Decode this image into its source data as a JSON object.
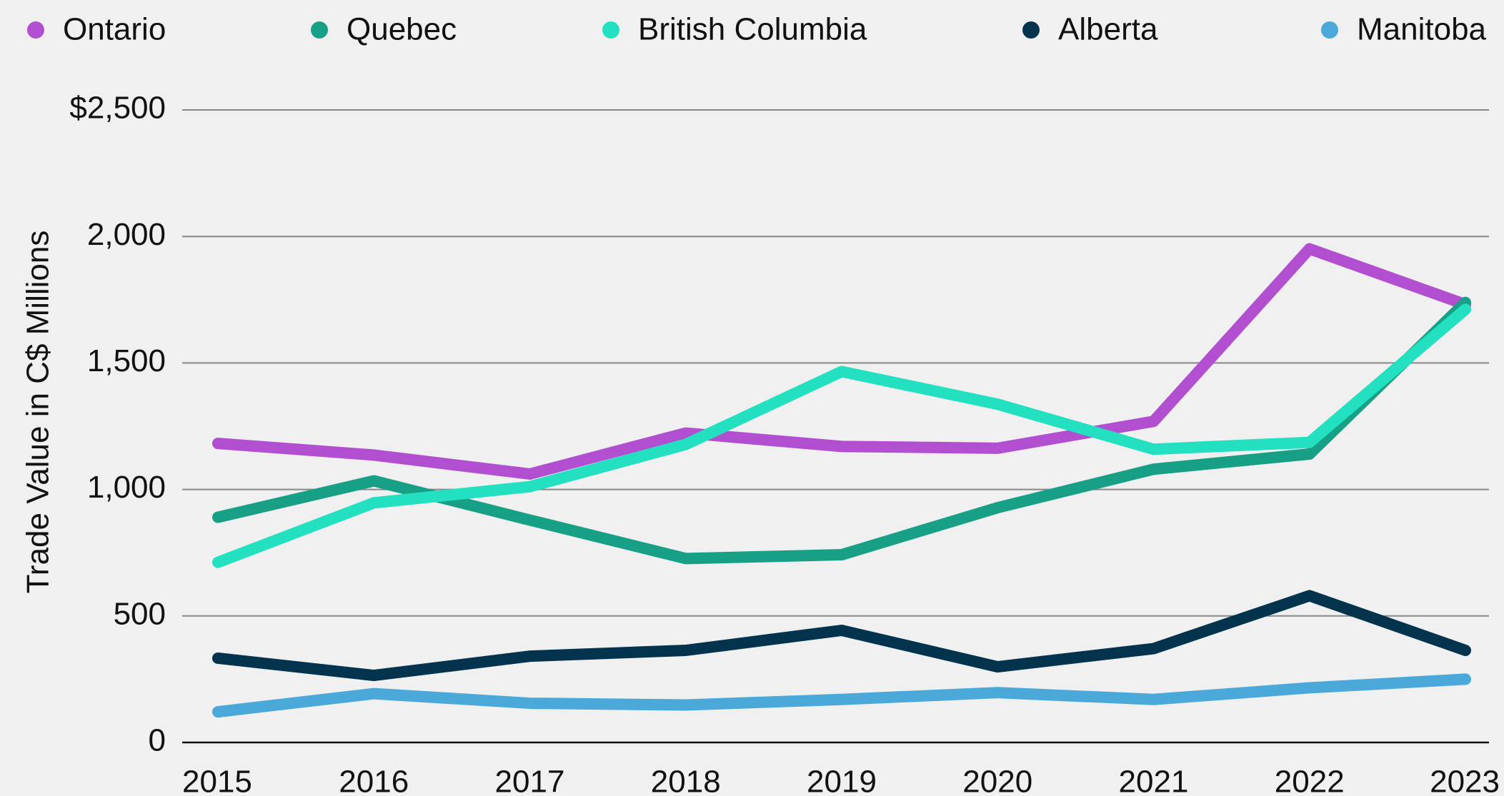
{
  "chart_data": {
    "type": "line",
    "y_label": "Trade Value in C$ Millions",
    "x": [
      "2015",
      "2016",
      "2017",
      "2018",
      "2019",
      "2020",
      "2021",
      "2022",
      "2023"
    ],
    "series": [
      {
        "name": "Ontario",
        "color": "#b24fd1",
        "values": [
          1182,
          1136,
          1061,
          1223,
          1170,
          1163,
          1269,
          1951,
          1731
        ]
      },
      {
        "name": "Quebec",
        "color": "#17a085",
        "values": [
          890,
          1034,
          879,
          727,
          742,
          928,
          1080,
          1140,
          1739
        ]
      },
      {
        "name": "British Columbia",
        "color": "#22e0c0",
        "values": [
          712,
          947,
          1011,
          1178,
          1466,
          1337,
          1159,
          1186,
          1712
        ]
      },
      {
        "name": "Alberta",
        "color": "#04344d",
        "values": [
          333,
          265,
          341,
          364,
          443,
          299,
          371,
          580,
          364
        ]
      },
      {
        "name": "Manitoba",
        "color": "#4aa9d9",
        "values": [
          121,
          193,
          155,
          148,
          170,
          197,
          170,
          216,
          250
        ]
      }
    ],
    "ylim": [
      0,
      2500
    ],
    "yticks": [
      0,
      500,
      {
        "value": 1000,
        "label": "1,000"
      },
      {
        "value": 1500,
        "label": "1,500"
      },
      {
        "value": 2000,
        "label": "2,000"
      },
      {
        "value": 2500,
        "label": "$2,500"
      }
    ],
    "grid": true,
    "legend": "top"
  }
}
